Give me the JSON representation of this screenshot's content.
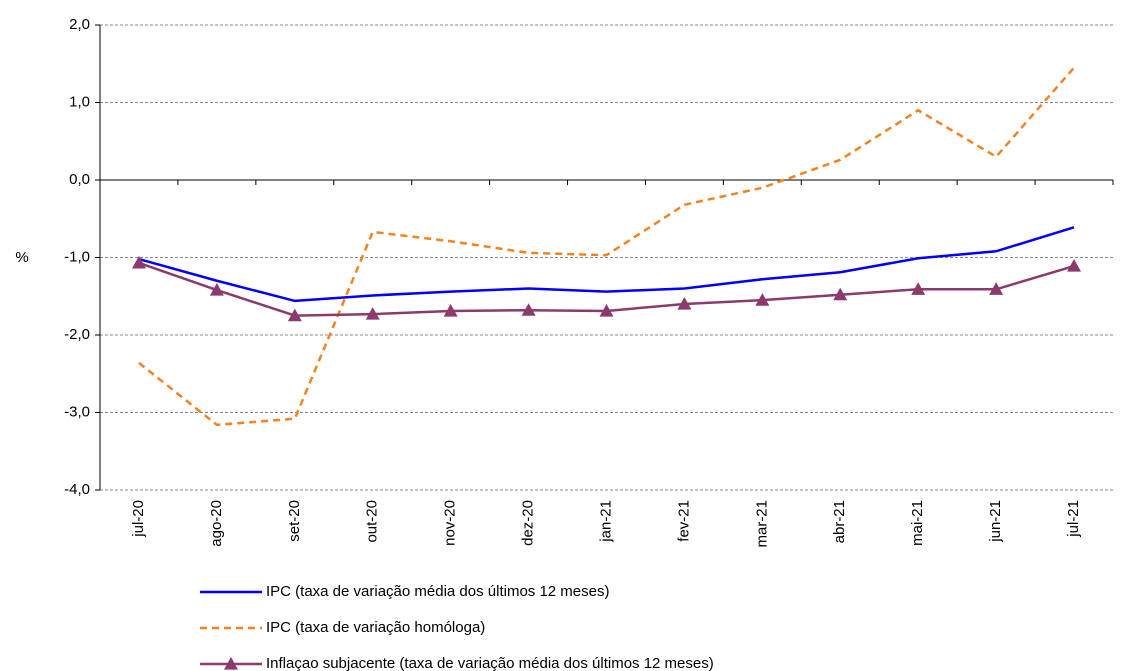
{
  "chart_data": {
    "type": "line",
    "y_label": "%",
    "categories": [
      "jul-20",
      "ago-20",
      "set-20",
      "out-20",
      "nov-20",
      "dez-20",
      "jan-21",
      "fev-21",
      "mar-21",
      "abr-21",
      "mai-21",
      "jun-21",
      "jul-21"
    ],
    "series": [
      {
        "name": "IPC (taxa de variação média dos últimos 12 meses)",
        "color": "#0000ff",
        "dash": false,
        "marker": false,
        "values": [
          -1.02,
          -1.3,
          -1.56,
          -1.49,
          -1.44,
          -1.4,
          -1.44,
          -1.4,
          -1.28,
          -1.19,
          -1.01,
          -0.92,
          -0.61
        ]
      },
      {
        "name": "IPC (taxa de variação homóloga)",
        "color": "#f58220",
        "dash": true,
        "marker": false,
        "values": [
          -2.36,
          -3.16,
          -3.08,
          -0.67,
          -0.79,
          -0.94,
          -0.97,
          -0.32,
          -0.1,
          0.26,
          0.9,
          0.3,
          1.45
        ]
      },
      {
        "name": "Inflaçao subjacente (taxa de variação média dos últimos 12 meses)",
        "color": "#8b3a6b",
        "dash": false,
        "marker": true,
        "values": [
          -1.07,
          -1.42,
          -1.75,
          -1.73,
          -1.69,
          -1.68,
          -1.69,
          -1.6,
          -1.55,
          -1.48,
          -1.41,
          -1.41,
          -1.11
        ]
      }
    ],
    "ylim": [
      -4,
      2
    ],
    "yticks": [
      {
        "value": -4,
        "label": "-4,0"
      },
      {
        "value": -3,
        "label": "-3,0"
      },
      {
        "value": -2,
        "label": "-2,0"
      },
      {
        "value": -1,
        "label": "-1,0"
      },
      {
        "value": 0,
        "label": "0,0"
      },
      {
        "value": 1,
        "label": "1,0"
      },
      {
        "value": 2,
        "label": "2,0"
      }
    ],
    "grid": true
  }
}
